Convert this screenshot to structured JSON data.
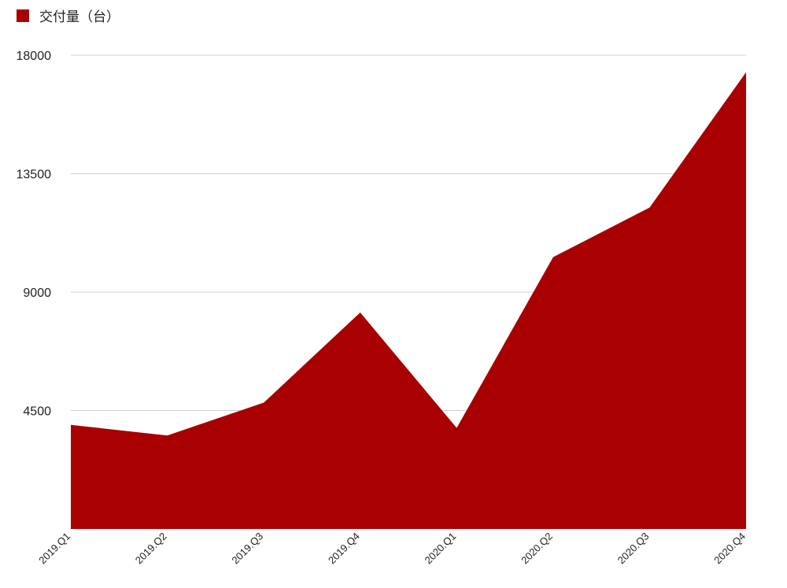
{
  "chart_data": {
    "type": "area",
    "categories": [
      "2019.Q1",
      "2019.Q2",
      "2019.Q3",
      "2019.Q4",
      "2020.Q1",
      "2020.Q2",
      "2020.Q3",
      "2020.Q4"
    ],
    "series": [
      {
        "name": "交付量（台）",
        "values": [
          3955,
          3553,
          4799,
          8225,
          3838,
          10331,
          12213,
          17353
        ],
        "color": "#a80000"
      }
    ],
    "yticks": [
      4500,
      9000,
      13500,
      18000
    ],
    "ylim": [
      0,
      19500
    ],
    "grid": true,
    "legend_position": "top-left"
  }
}
